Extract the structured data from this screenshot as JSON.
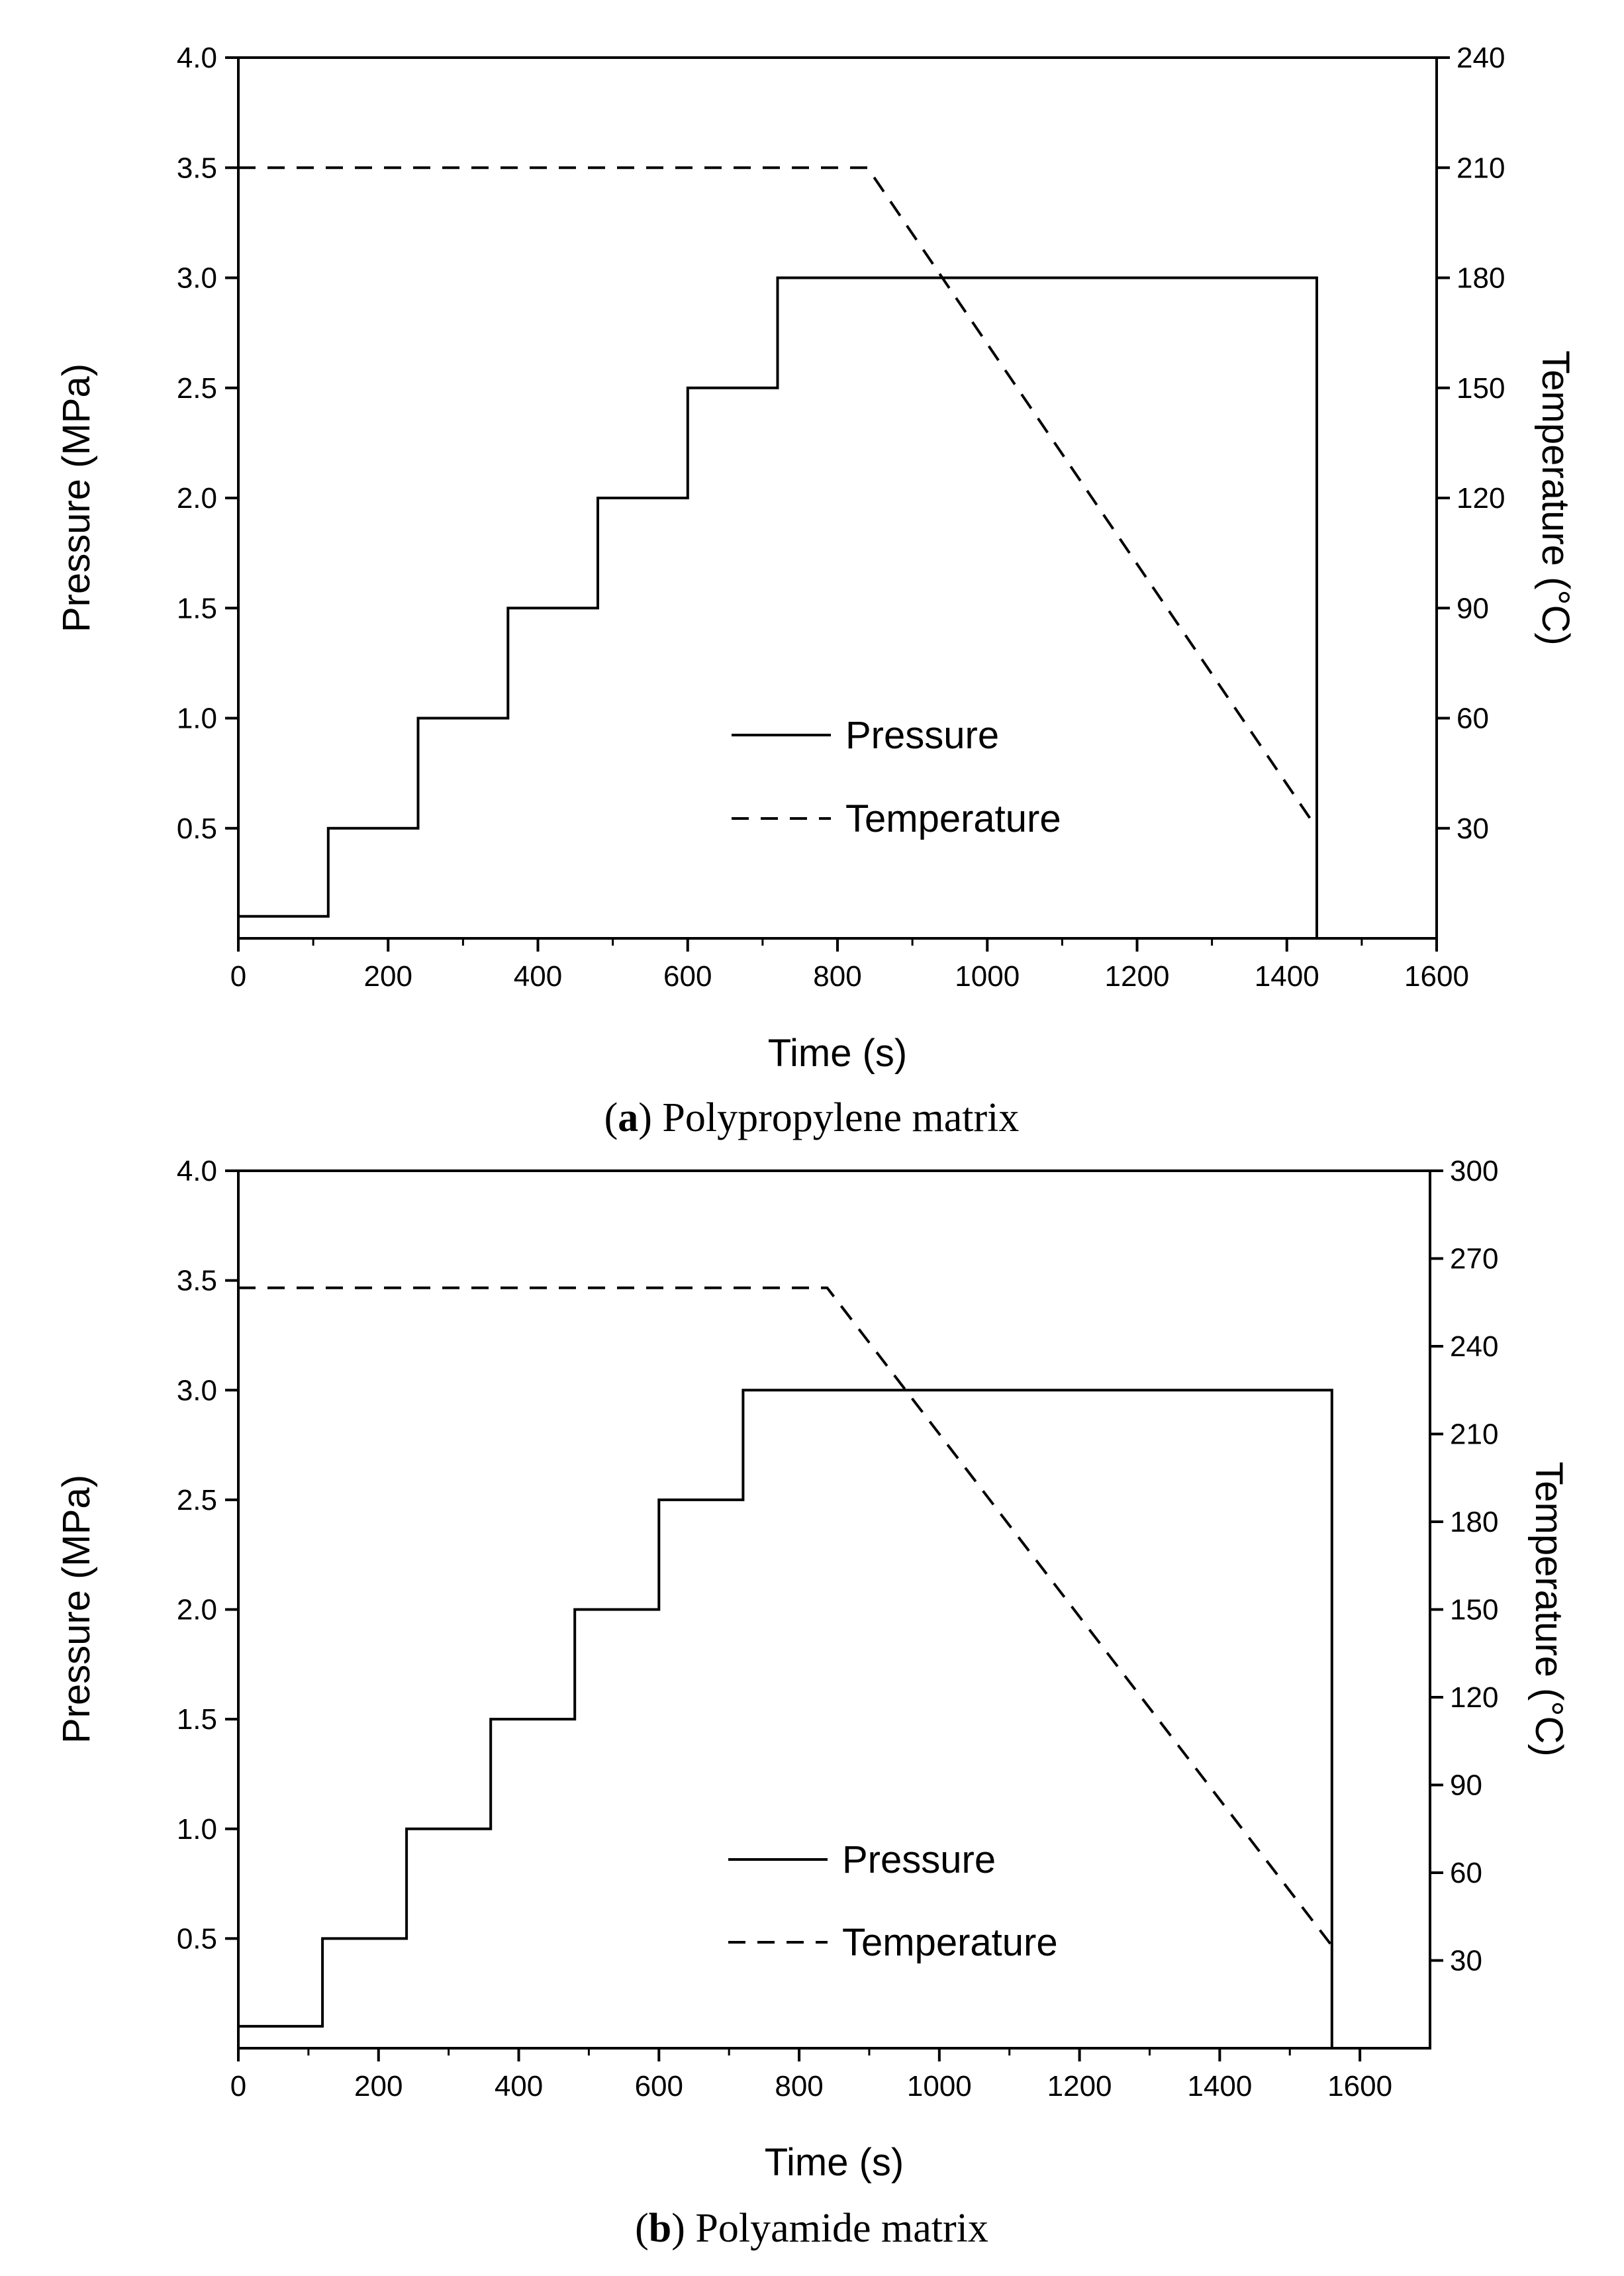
{
  "figure": {
    "panels": [
      {
        "caption": {
          "open": "(",
          "letter": "a",
          "rest": ") Polypropylene matrix"
        }
      },
      {
        "caption": {
          "open": "(",
          "letter": "b",
          "rest": ") Polyamide matrix"
        }
      }
    ]
  },
  "chart_data": [
    {
      "type": "line",
      "title": "",
      "xlabel": "Time (s)",
      "ylabel": "Pressure (MPa)",
      "y2label": "Temperature (°C)",
      "xlim": [
        0,
        1600
      ],
      "ylim": [
        0,
        4.0
      ],
      "y2lim": [
        0,
        240
      ],
      "x_ticks": [
        0,
        200,
        400,
        600,
        800,
        1000,
        1200,
        1400,
        1600
      ],
      "y_ticks": [
        0.5,
        1.0,
        1.5,
        2.0,
        2.5,
        3.0,
        3.5,
        4.0
      ],
      "y2_ticks": [
        30,
        60,
        90,
        120,
        150,
        180,
        210,
        240
      ],
      "legend_position": "center-right",
      "series": [
        {
          "name": "Pressure",
          "style": "solid",
          "axis": "left",
          "x": [
            0,
            120,
            120,
            240,
            240,
            360,
            360,
            480,
            480,
            600,
            600,
            720,
            720,
            1440,
            1440
          ],
          "y": [
            0.1,
            0.1,
            0.5,
            0.5,
            1.0,
            1.0,
            1.5,
            1.5,
            2.0,
            2.0,
            2.5,
            2.5,
            3.0,
            3.0,
            0
          ]
        },
        {
          "name": "Temperature",
          "style": "dashed",
          "axis": "right",
          "x": [
            0,
            840,
            1440
          ],
          "y": [
            210,
            210,
            30
          ]
        }
      ]
    },
    {
      "type": "line",
      "title": "",
      "xlabel": "Time (s)",
      "ylabel": "Pressure (MPa)",
      "y2label": "Temperature (°C)",
      "xlim": [
        0,
        1700
      ],
      "ylim": [
        0,
        4.0
      ],
      "y2lim": [
        0,
        300
      ],
      "x_ticks": [
        0,
        200,
        400,
        600,
        800,
        1000,
        1200,
        1400,
        1600
      ],
      "y_ticks": [
        0.5,
        1.0,
        1.5,
        2.0,
        2.5,
        3.0,
        3.5,
        4.0
      ],
      "y2_ticks": [
        30,
        60,
        90,
        120,
        150,
        180,
        210,
        240,
        270,
        300
      ],
      "legend_position": "center-right",
      "series": [
        {
          "name": "Pressure",
          "style": "solid",
          "axis": "left",
          "x": [
            0,
            120,
            120,
            240,
            240,
            360,
            360,
            480,
            480,
            600,
            600,
            720,
            720,
            1560,
            1560
          ],
          "y": [
            0.1,
            0.1,
            0.5,
            0.5,
            1.0,
            1.0,
            1.5,
            1.5,
            2.0,
            2.0,
            2.5,
            2.5,
            3.0,
            3.0,
            0
          ]
        },
        {
          "name": "Temperature",
          "style": "dashed",
          "axis": "right",
          "x": [
            0,
            840,
            1560
          ],
          "y": [
            260,
            260,
            35
          ]
        }
      ]
    }
  ]
}
